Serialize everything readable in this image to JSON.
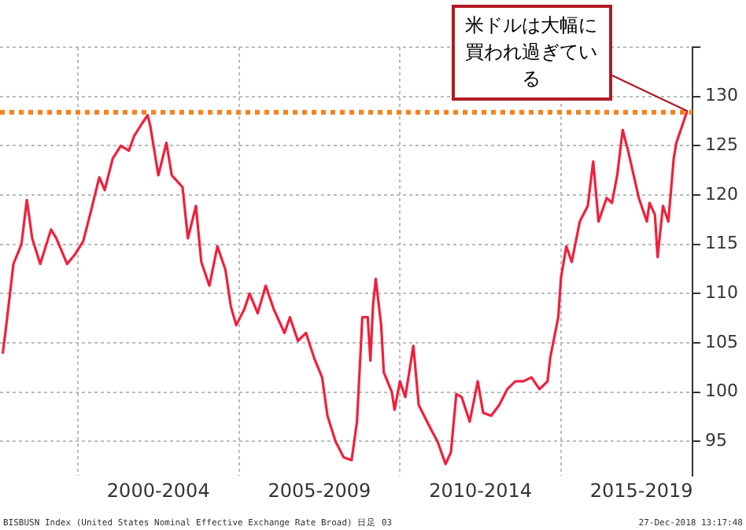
{
  "chart_data": {
    "type": "line",
    "x": [
      "1997-09",
      "1997-10",
      "1998-01",
      "1998-04",
      "1998-06",
      "1998-08",
      "1998-11",
      "1999-03",
      "1999-05",
      "1999-09",
      "1999-12",
      "2000-03",
      "2000-06",
      "2000-09",
      "2000-11",
      "2001-02",
      "2001-05",
      "2001-08",
      "2001-10",
      "2002-01",
      "2002-03",
      "2002-04",
      "2002-07",
      "2002-10",
      "2002-12",
      "2003-04",
      "2003-06",
      "2003-09",
      "2003-11",
      "2004-02",
      "2004-05",
      "2004-08",
      "2004-10",
      "2004-12",
      "2005-03",
      "2005-05",
      "2005-08",
      "2005-11",
      "2006-02",
      "2006-06",
      "2006-08",
      "2006-11",
      "2007-02",
      "2007-05",
      "2007-08",
      "2007-10",
      "2008-01",
      "2008-04",
      "2008-07",
      "2008-09",
      "2008-11",
      "2009-01",
      "2009-02",
      "2009-03",
      "2009-04",
      "2009-06",
      "2009-07",
      "2009-10",
      "2009-11",
      "2010-01",
      "2010-03",
      "2010-06",
      "2010-08",
      "2010-10",
      "2011-01",
      "2011-03",
      "2011-06",
      "2011-08",
      "2011-10",
      "2011-12",
      "2012-03",
      "2012-06",
      "2012-08",
      "2012-11",
      "2013-02",
      "2013-05",
      "2013-08",
      "2013-11",
      "2014-02",
      "2014-05",
      "2014-08",
      "2014-09",
      "2014-12",
      "2015-01",
      "2015-03",
      "2015-05",
      "2015-08",
      "2015-11",
      "2016-01",
      "2016-03",
      "2016-06",
      "2016-08",
      "2016-10",
      "2016-12",
      "2017-02",
      "2017-04",
      "2017-06",
      "2017-09",
      "2017-10",
      "2017-12",
      "2018-01",
      "2018-03",
      "2018-05",
      "2018-07",
      "2018-08",
      "2018-10",
      "2018-12"
    ],
    "series": [
      {
        "color": "#f0203c",
        "values": [
          103.9,
          106,
          113,
          115,
          119.5,
          115.6,
          113,
          116.5,
          115.6,
          113,
          114,
          115.3,
          118.5,
          121.8,
          120.5,
          123.7,
          125,
          124.5,
          126,
          127.3,
          128.1,
          127,
          122,
          125.3,
          122,
          120.8,
          115.6,
          118.9,
          113.2,
          110.8,
          114.8,
          112.4,
          108.7,
          106.8,
          108.4,
          110,
          108,
          110.8,
          108.4,
          106,
          107.6,
          105.2,
          106,
          103.5,
          101.5,
          97.6,
          95,
          93.4,
          93.1,
          97,
          107.6,
          107.6,
          103.2,
          108.9,
          111.5,
          106.8,
          102,
          100,
          98.2,
          101.1,
          99.5,
          104.7,
          98.7,
          97.6,
          96,
          95,
          92.7,
          93.9,
          99.8,
          99.5,
          97,
          101.1,
          97.9,
          97.6,
          98.7,
          100.3,
          101.1,
          101.1,
          101.5,
          100.3,
          101.1,
          103.5,
          107.6,
          111.6,
          114.8,
          113.2,
          117.3,
          118.9,
          123.4,
          117.3,
          119.7,
          119.2,
          122.1,
          126.6,
          124.5,
          122.1,
          119.7,
          117.3,
          119.2,
          118,
          113.7,
          118.9,
          117.3,
          123.7,
          125.3,
          126.9,
          128.5
        ]
      }
    ],
    "xlim": [
      "1997-08",
      "2019-02"
    ],
    "xticks": [
      {
        "value": "2000-01",
        "label": null
      },
      {
        "value": "2002-07",
        "label": "2000-2004"
      },
      {
        "value": "2005-01",
        "label": null
      },
      {
        "value": "2007-07",
        "label": "2005-2009"
      },
      {
        "value": "2010-01",
        "label": null
      },
      {
        "value": "2012-07",
        "label": "2010-2014"
      },
      {
        "value": "2015-01",
        "label": null
      },
      {
        "value": "2017-07",
        "label": "2015-2019"
      }
    ],
    "ylim": [
      91.5,
      135
    ],
    "yticks": [
      95,
      100,
      105,
      110,
      115,
      120,
      125,
      130,
      {
        "value": 135,
        "label": null
      }
    ],
    "grid": true,
    "ref_lines": [
      {
        "axis": "y",
        "value": 128.4,
        "color": "#f5821f",
        "line_style": "dotted"
      }
    ],
    "annotations": [
      {
        "text": "米ドルは大幅に買われ過ぎている",
        "x": "2018-12",
        "y": 128.5
      },
      "BISBUSN Index (United States Nominal Effective Exchange Rate Broad) 日足 03",
      "27-Dec-2018 13:17:48"
    ]
  }
}
